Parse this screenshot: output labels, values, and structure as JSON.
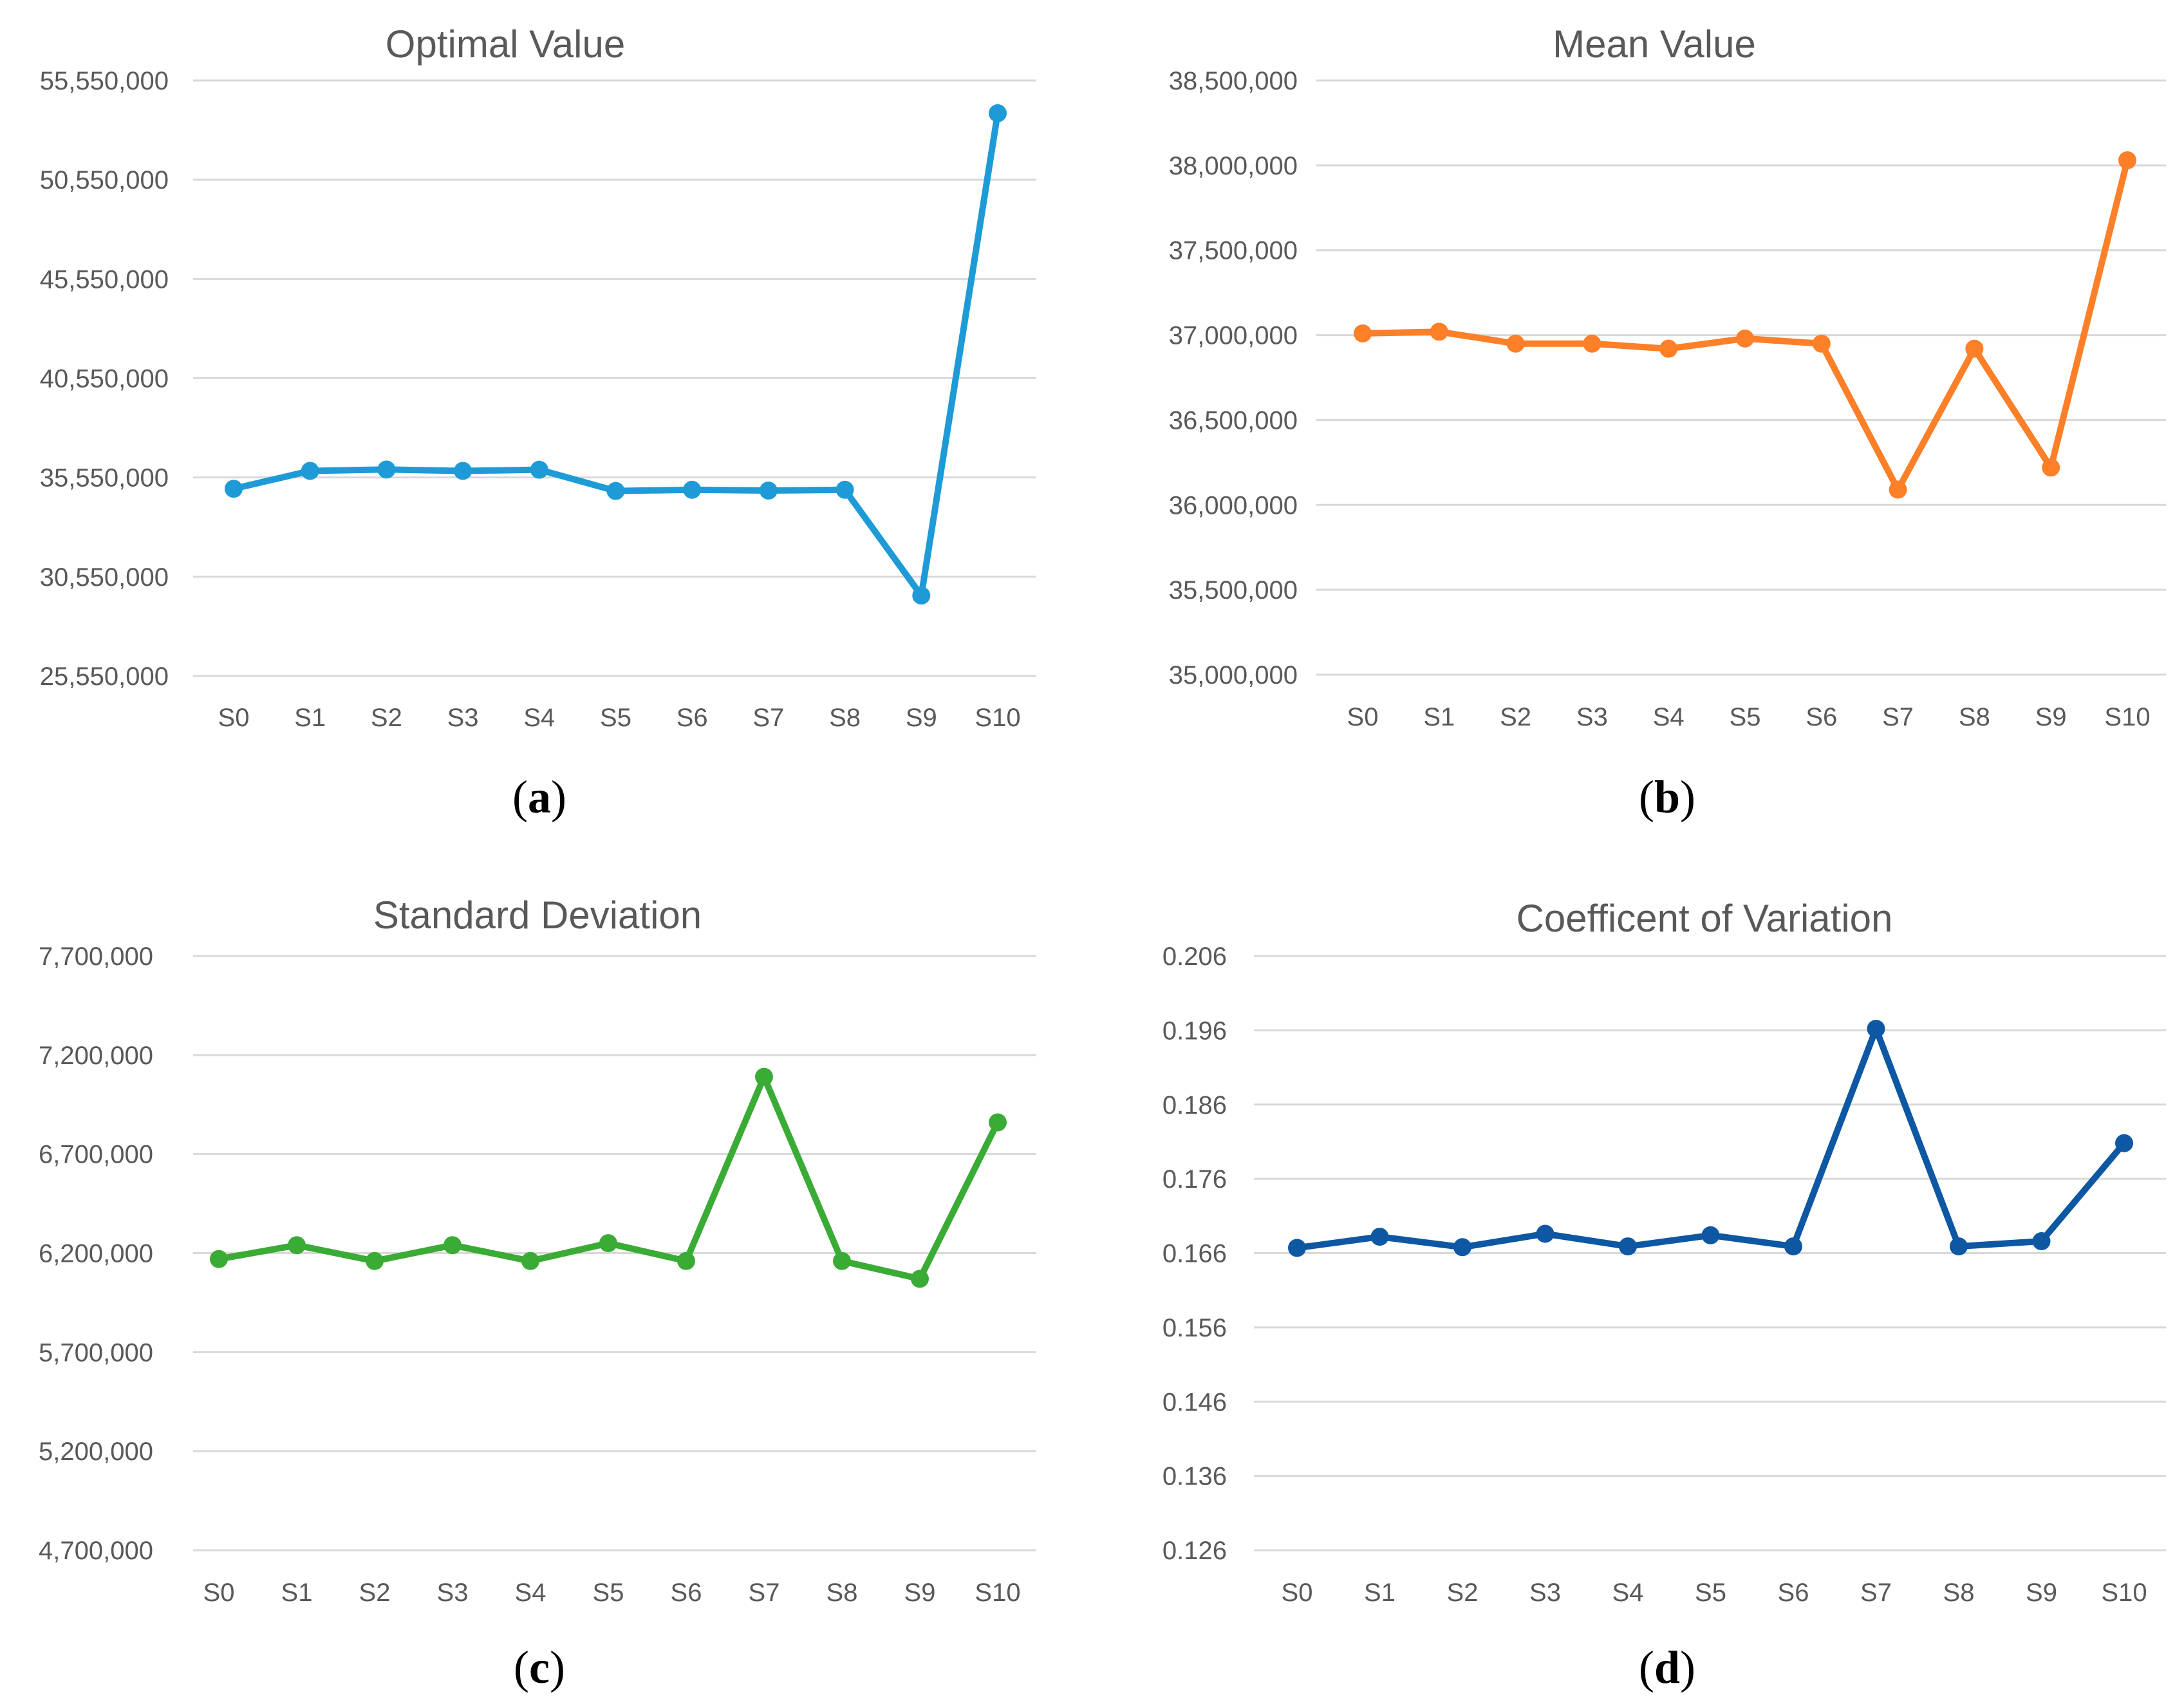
{
  "figure": {
    "background": "#ffffff",
    "grid_color": "#d9d9d9",
    "text_color": "#595959"
  },
  "chart_data": [
    {
      "type": "line",
      "panel": "a",
      "title": "Optimal Value",
      "categories": [
        "S0",
        "S1",
        "S2",
        "S3",
        "S4",
        "S5",
        "S6",
        "S7",
        "S8",
        "S9",
        "S10"
      ],
      "series": [
        {
          "name": "Optimal Value",
          "color": "#1e9bd7",
          "values": [
            34980000,
            35880000,
            35950000,
            35880000,
            35940000,
            34870000,
            34930000,
            34890000,
            34930000,
            29600000,
            53900000
          ]
        }
      ],
      "yticks": [
        25550000,
        30550000,
        35550000,
        40550000,
        45550000,
        50550000,
        55550000
      ],
      "ytick_labels": [
        "25,550,000",
        "30,550,000",
        "35,550,000",
        "40,550,000",
        "45,550,000",
        "50,550,000",
        "55,550,000"
      ],
      "ylim": [
        25550000,
        55550000
      ],
      "xlabel": "",
      "ylabel": "",
      "grid": true,
      "legend": "none"
    },
    {
      "type": "line",
      "panel": "b",
      "title": "Mean Value",
      "categories": [
        "S0",
        "S1",
        "S2",
        "S3",
        "S4",
        "S5",
        "S6",
        "S7",
        "S8",
        "S9",
        "S10"
      ],
      "series": [
        {
          "name": "Mean Value",
          "color": "#fd7f28",
          "values": [
            37010000,
            37020000,
            36950000,
            36950000,
            36920000,
            36980000,
            36950000,
            36090000,
            36920000,
            36220000,
            38030000
          ]
        }
      ],
      "yticks": [
        35000000,
        35500000,
        36000000,
        36500000,
        37000000,
        37500000,
        38000000,
        38500000
      ],
      "ytick_labels": [
        "35,000,000",
        "35,500,000",
        "36,000,000",
        "36,500,000",
        "37,000,000",
        "37,500,000",
        "38,000,000",
        "38,500,000"
      ],
      "ylim": [
        35000000,
        38500000
      ],
      "xlabel": "",
      "ylabel": "",
      "grid": true,
      "legend": "none"
    },
    {
      "type": "line",
      "panel": "c",
      "title": "Standard Deviation",
      "categories": [
        "S0",
        "S1",
        "S2",
        "S3",
        "S4",
        "S5",
        "S6",
        "S7",
        "S8",
        "S9",
        "S10"
      ],
      "series": [
        {
          "name": "Standard Deviation",
          "color": "#3aab35",
          "values": [
            6170000,
            6240000,
            6160000,
            6240000,
            6160000,
            6250000,
            6160000,
            7090000,
            6160000,
            6070000,
            6860000
          ]
        }
      ],
      "yticks": [
        4700000,
        5200000,
        5700000,
        6200000,
        6700000,
        7200000,
        7700000
      ],
      "ytick_labels": [
        "4,700,000",
        "5,200,000",
        "5,700,000",
        "6,200,000",
        "6,700,000",
        "7,200,000",
        "7,700,000"
      ],
      "ylim": [
        4700000,
        7700000
      ],
      "xlabel": "",
      "ylabel": "",
      "grid": true,
      "legend": "none"
    },
    {
      "type": "line",
      "panel": "d",
      "title": "Coefficent of Variation",
      "categories": [
        "S0",
        "S1",
        "S2",
        "S3",
        "S4",
        "S5",
        "S6",
        "S7",
        "S8",
        "S9",
        "S10"
      ],
      "series": [
        {
          "name": "Coefficent of Variation",
          "color": "#0e57a3",
          "values": [
            0.1667,
            0.1682,
            0.1668,
            0.1686,
            0.1669,
            0.1684,
            0.1669,
            0.1962,
            0.1669,
            0.1676,
            0.1808
          ]
        }
      ],
      "yticks": [
        0.126,
        0.136,
        0.146,
        0.156,
        0.166,
        0.176,
        0.186,
        0.196,
        0.206
      ],
      "ytick_labels": [
        "0.126",
        "0.136",
        "0.146",
        "0.156",
        "0.166",
        "0.176",
        "0.186",
        "0.196",
        "0.206"
      ],
      "ylim": [
        0.126,
        0.206
      ],
      "xlabel": "",
      "ylabel": "",
      "grid": true,
      "legend": "none"
    }
  ],
  "panel_labels": [
    "a",
    "b",
    "c",
    "d"
  ]
}
